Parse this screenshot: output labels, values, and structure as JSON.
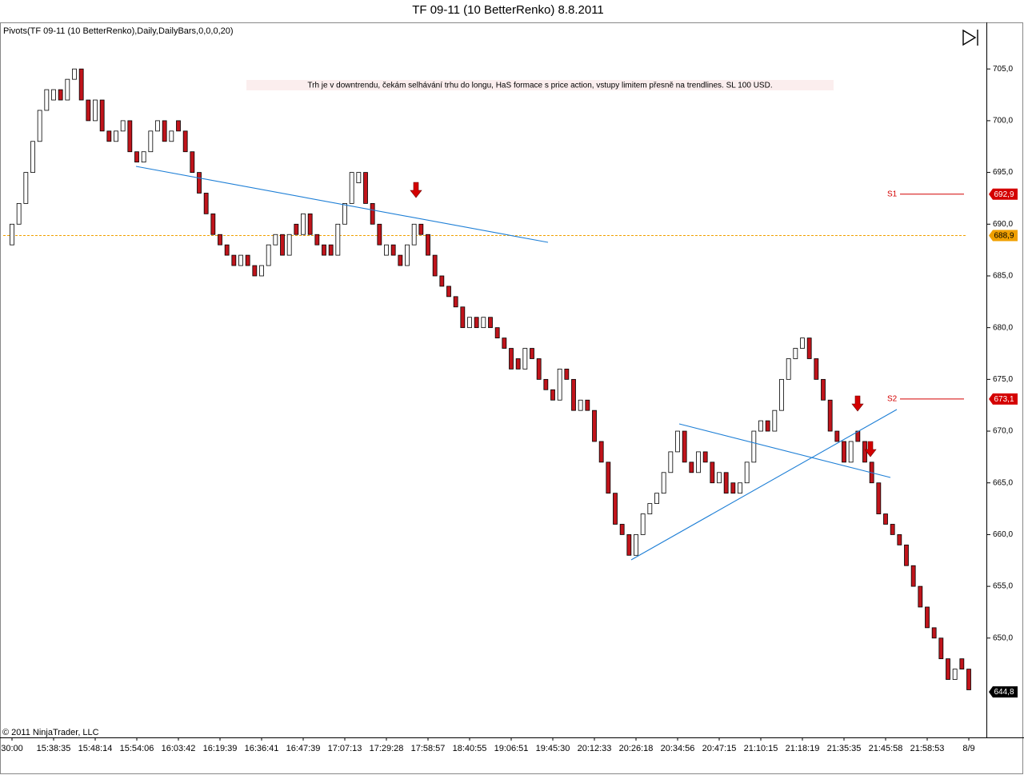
{
  "chart_data": {
    "type": "candlestick",
    "title": "TF 09-11 (10 BetterRenko)  8.8.2011",
    "subtitle": "Pivots(TF 09-11 (10 BetterRenko),Daily,DailyBars,0,0,0,20)",
    "annotation": "Trh je v downtrendu, čekám selhávání trhu do longu, HaS formace s price action, vstupy limitem přesně na trendlines. SL 100 USD.",
    "copyright": "© 2011 NinjaTrader, LLC",
    "categories": [
      "30:00",
      null,
      null,
      null,
      null,
      null,
      "15:38:35",
      null,
      null,
      null,
      null,
      null,
      "15:48:14",
      null,
      null,
      null,
      null,
      null,
      "15:54:06",
      null,
      null,
      null,
      null,
      null,
      "16:03:42",
      null,
      null,
      null,
      null,
      null,
      "16:19:39",
      null,
      null,
      null,
      null,
      null,
      "16:36:41",
      null,
      null,
      null,
      null,
      null,
      "16:47:39",
      null,
      null,
      null,
      null,
      null,
      "17:07:13",
      null,
      null,
      null,
      null,
      null,
      "17:29:28",
      null,
      null,
      null,
      null,
      null,
      "17:58:57",
      null,
      null,
      null,
      null,
      null,
      "18:40:55",
      null,
      null,
      null,
      null,
      null,
      "19:06:51",
      null,
      null,
      null,
      null,
      null,
      "19:45:30",
      null,
      null,
      null,
      null,
      null,
      "20:12:33",
      null,
      null,
      null,
      null,
      null,
      "20:26:18",
      null,
      null,
      null,
      null,
      null,
      "20:34:56",
      null,
      null,
      null,
      null,
      null,
      "20:47:15",
      null,
      null,
      null,
      null,
      null,
      "21:10:15",
      null,
      null,
      null,
      null,
      null,
      "21:18:19",
      null,
      null,
      null,
      null,
      null,
      "21:35:35",
      null,
      null,
      null,
      null,
      null,
      "21:45:58",
      null,
      null,
      null,
      null,
      null,
      "21:58:53",
      null,
      null,
      null,
      null,
      null,
      "8/9"
    ],
    "open": [
      688,
      690,
      692,
      695,
      698,
      701,
      702,
      703,
      702,
      704,
      705,
      702,
      700,
      702,
      699,
      698,
      699,
      700,
      697,
      696,
      697,
      699,
      700,
      698,
      700,
      699,
      697,
      695,
      693,
      691,
      689,
      688,
      687,
      686,
      687,
      686,
      685,
      686,
      688,
      689,
      687,
      690,
      689,
      691,
      689,
      688,
      688,
      687,
      690,
      692,
      694,
      695,
      692,
      690,
      687,
      688,
      687,
      686,
      688,
      690,
      689,
      687,
      685,
      684,
      683,
      682,
      680,
      681,
      680,
      681,
      680,
      679,
      678,
      677,
      676,
      678,
      677,
      675,
      674,
      673,
      676,
      675,
      672,
      673,
      672,
      669,
      667,
      664,
      661,
      660,
      658,
      660,
      662,
      663,
      664,
      666,
      668,
      670,
      667,
      666,
      668,
      667,
      665,
      666,
      665,
      664,
      665,
      667,
      670,
      671,
      670,
      672,
      675,
      677,
      678,
      679,
      677,
      675,
      673,
      670,
      669,
      667,
      670,
      669,
      667,
      665,
      662,
      661,
      660,
      659,
      657,
      655,
      653,
      651,
      650,
      648,
      646,
      648,
      647
    ],
    "close": [
      690,
      692,
      695,
      698,
      701,
      703,
      703,
      702,
      704,
      705,
      702,
      700,
      702,
      699,
      698,
      699,
      700,
      697,
      696,
      697,
      699,
      700,
      698,
      699,
      699,
      697,
      695,
      693,
      691,
      689,
      688,
      687,
      686,
      687,
      686,
      685,
      686,
      688,
      689,
      687,
      689,
      689,
      691,
      689,
      688,
      687,
      687,
      690,
      692,
      695,
      695,
      692,
      690,
      688,
      688,
      687,
      686,
      688,
      690,
      689,
      687,
      685,
      684,
      683,
      682,
      680,
      681,
      680,
      681,
      680,
      679,
      678,
      676,
      676,
      678,
      677,
      675,
      674,
      673,
      676,
      675,
      672,
      673,
      672,
      669,
      667,
      664,
      661,
      660,
      658,
      660,
      662,
      663,
      664,
      666,
      668,
      670,
      667,
      666,
      668,
      667,
      665,
      666,
      664,
      664,
      665,
      667,
      670,
      671,
      670,
      672,
      675,
      677,
      678,
      679,
      677,
      675,
      673,
      670,
      669,
      667,
      669,
      669,
      667,
      665,
      662,
      661,
      660,
      659,
      657,
      655,
      653,
      651,
      650,
      648,
      646,
      647,
      647,
      645
    ],
    "up_color": "#ffffff",
    "down_color": "#c0141b",
    "ylim": [
      640.4,
      709.5
    ],
    "yticks": [
      {
        "value": 650,
        "label": "650,0"
      },
      {
        "value": 655,
        "label": "655,0"
      },
      {
        "value": 660,
        "label": "660,0"
      },
      {
        "value": 665,
        "label": "665,0"
      },
      {
        "value": 670,
        "label": "670,0"
      },
      {
        "value": 675,
        "label": "675,0"
      },
      {
        "value": 680,
        "label": "680,0"
      },
      {
        "value": 685,
        "label": "685,0"
      },
      {
        "value": 690,
        "label": "690,0"
      },
      {
        "value": 695,
        "label": "695,0"
      },
      {
        "value": 700,
        "label": "700,0"
      },
      {
        "value": 705,
        "label": "705,0"
      }
    ],
    "levels": [
      {
        "name": "S1",
        "value": 692.9,
        "label": "692,9",
        "color": "#d40000"
      },
      {
        "name": "S2",
        "value": 673.1,
        "label": "673,1",
        "color": "#d40000"
      },
      {
        "value": 688.9,
        "label": "688,9",
        "color": "#f0a000"
      }
    ],
    "last_price": {
      "value": 644.8,
      "label": "644,8",
      "color": "#000000"
    }
  }
}
